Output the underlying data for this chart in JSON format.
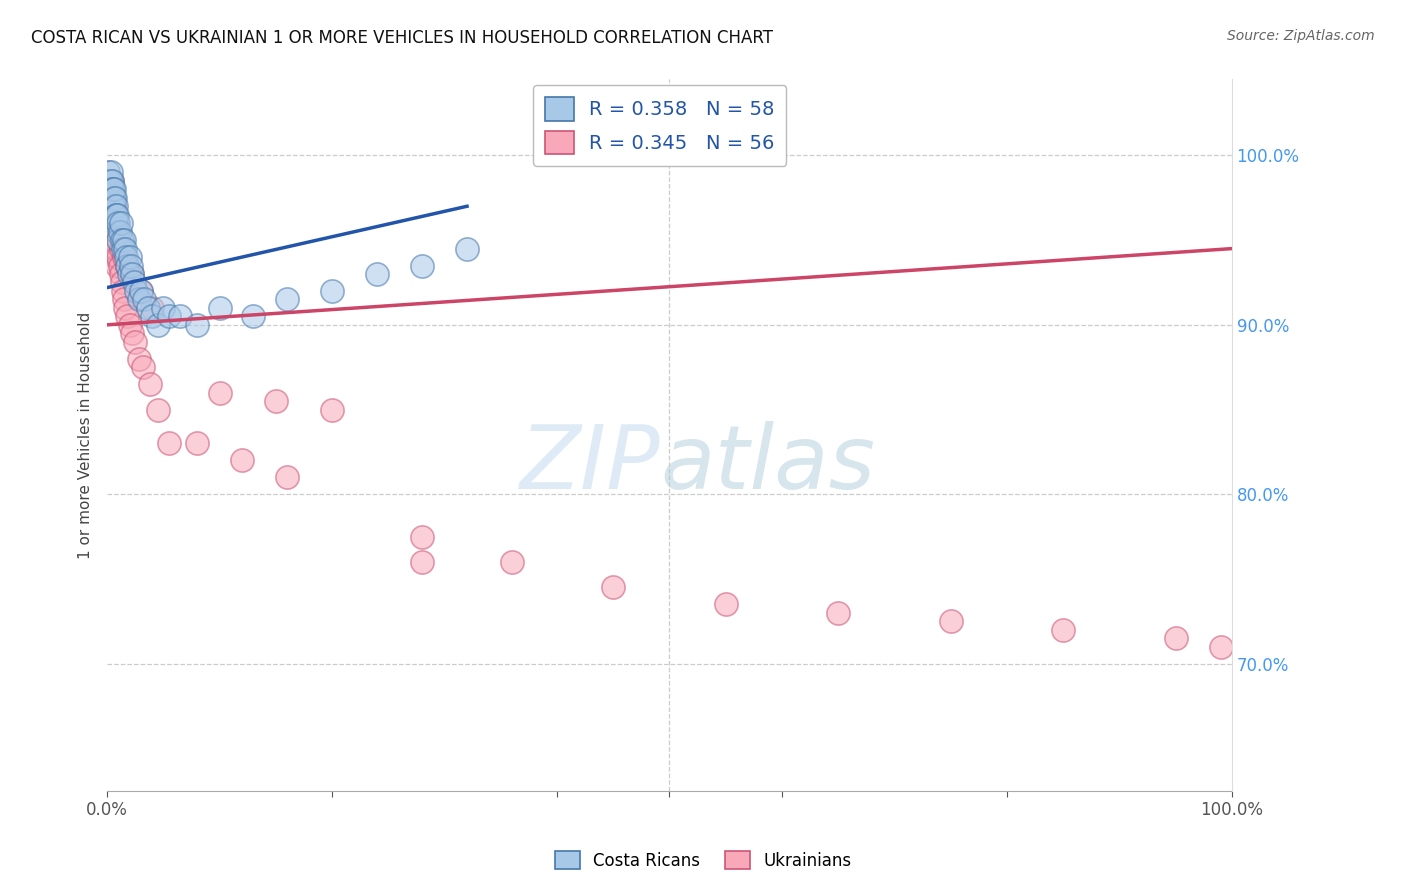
{
  "title": "COSTA RICAN VS UKRAINIAN 1 OR MORE VEHICLES IN HOUSEHOLD CORRELATION CHART",
  "source": "Source: ZipAtlas.com",
  "ylabel": "1 or more Vehicles in Household",
  "ytick_vals": [
    0.7,
    0.8,
    0.9,
    1.0
  ],
  "ytick_labels": [
    "70.0%",
    "80.0%",
    "90.0%",
    "100.0%"
  ],
  "legend_entry1": "R = 0.358   N = 58",
  "legend_entry2": "R = 0.345   N = 56",
  "legend_label1": "Costa Ricans",
  "legend_label2": "Ukrainians",
  "blue_face": "#a8c8e8",
  "blue_edge": "#4477aa",
  "pink_face": "#f8a8b8",
  "pink_edge": "#cc5577",
  "blue_line": "#2255aa",
  "pink_line": "#cc4466",
  "xlim": [
    0.0,
    1.0
  ],
  "ylim": [
    0.625,
    1.045
  ],
  "blue_x": [
    0.001,
    0.002,
    0.002,
    0.003,
    0.003,
    0.003,
    0.003,
    0.004,
    0.004,
    0.004,
    0.005,
    0.005,
    0.005,
    0.005,
    0.006,
    0.006,
    0.006,
    0.007,
    0.007,
    0.007,
    0.008,
    0.008,
    0.008,
    0.009,
    0.009,
    0.01,
    0.01,
    0.011,
    0.012,
    0.013,
    0.014,
    0.015,
    0.016,
    0.017,
    0.018,
    0.019,
    0.02,
    0.021,
    0.022,
    0.024,
    0.026,
    0.028,
    0.03,
    0.033,
    0.036,
    0.04,
    0.045,
    0.05,
    0.055,
    0.065,
    0.08,
    0.1,
    0.13,
    0.16,
    0.2,
    0.24,
    0.28,
    0.32
  ],
  "blue_y": [
    0.99,
    0.985,
    0.975,
    0.985,
    0.98,
    0.99,
    0.975,
    0.98,
    0.97,
    0.985,
    0.975,
    0.97,
    0.98,
    0.965,
    0.975,
    0.97,
    0.98,
    0.96,
    0.965,
    0.975,
    0.96,
    0.97,
    0.965,
    0.955,
    0.965,
    0.96,
    0.95,
    0.955,
    0.96,
    0.95,
    0.945,
    0.95,
    0.945,
    0.94,
    0.935,
    0.93,
    0.94,
    0.935,
    0.93,
    0.925,
    0.92,
    0.915,
    0.92,
    0.915,
    0.91,
    0.905,
    0.9,
    0.91,
    0.905,
    0.905,
    0.9,
    0.91,
    0.905,
    0.915,
    0.92,
    0.93,
    0.935,
    0.945
  ],
  "pink_x": [
    0.002,
    0.003,
    0.003,
    0.004,
    0.004,
    0.005,
    0.005,
    0.006,
    0.007,
    0.008,
    0.008,
    0.009,
    0.01,
    0.011,
    0.012,
    0.013,
    0.014,
    0.015,
    0.016,
    0.018,
    0.02,
    0.022,
    0.025,
    0.028,
    0.032,
    0.038,
    0.045,
    0.055,
    0.1,
    0.15,
    0.2,
    0.28,
    0.36,
    0.45,
    0.55,
    0.65,
    0.75,
    0.85,
    0.95,
    0.99,
    0.003,
    0.004,
    0.005,
    0.006,
    0.008,
    0.01,
    0.012,
    0.015,
    0.018,
    0.022,
    0.03,
    0.04,
    0.08,
    0.12,
    0.16,
    0.28
  ],
  "pink_y": [
    0.975,
    0.97,
    0.96,
    0.965,
    0.955,
    0.96,
    0.95,
    0.95,
    0.945,
    0.94,
    0.945,
    0.935,
    0.94,
    0.935,
    0.93,
    0.925,
    0.92,
    0.915,
    0.91,
    0.905,
    0.9,
    0.895,
    0.89,
    0.88,
    0.875,
    0.865,
    0.85,
    0.83,
    0.86,
    0.855,
    0.85,
    0.775,
    0.76,
    0.745,
    0.735,
    0.73,
    0.725,
    0.72,
    0.715,
    0.71,
    0.98,
    0.985,
    0.975,
    0.97,
    0.96,
    0.955,
    0.945,
    0.94,
    0.935,
    0.93,
    0.92,
    0.91,
    0.83,
    0.82,
    0.81,
    0.76
  ],
  "blue_trend_x0": 0.0,
  "blue_trend_y0": 0.922,
  "blue_trend_x1": 0.32,
  "blue_trend_y1": 0.97,
  "pink_trend_x0": 0.0,
  "pink_trend_y0": 0.9,
  "pink_trend_x1": 1.0,
  "pink_trend_y1": 0.945
}
